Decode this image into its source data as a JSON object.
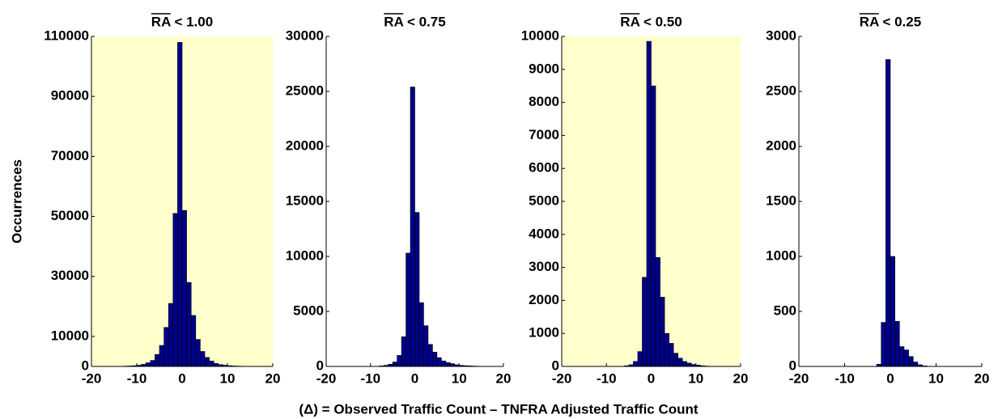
{
  "xlabel": "(Δ)  = Observed Traffic Count – TNFRA Adjusted Traffic Count",
  "chart_data": [
    {
      "type": "histogram",
      "title": "RA < 1.00",
      "ylabel": "Occurrences",
      "background": "#ffffcc",
      "color": "#000088",
      "bins": [
        -20,
        -19,
        -18,
        -17,
        -16,
        -15,
        -14,
        -13,
        -12,
        -11,
        -10,
        -9,
        -8,
        -7,
        -6,
        -5,
        -4,
        -3,
        -2,
        -1,
        0,
        1,
        2,
        3,
        4,
        5,
        6,
        7,
        8,
        9,
        10,
        11,
        12,
        13,
        14,
        15,
        16,
        17,
        18,
        19,
        20
      ],
      "values": [
        0,
        0,
        0,
        0,
        0,
        20,
        50,
        100,
        150,
        250,
        400,
        700,
        1200,
        2000,
        4000,
        7000,
        13000,
        21000,
        51000,
        108000,
        52000,
        28000,
        17000,
        9000,
        5000,
        3000,
        1800,
        1000,
        600,
        400,
        250,
        150,
        100,
        60,
        40,
        20,
        10,
        5,
        0,
        0
      ],
      "xlim": [
        -20,
        20
      ],
      "xticks": [
        -20,
        -10,
        0,
        10,
        20
      ],
      "ylim": [
        0,
        110000
      ],
      "yticks": [
        0,
        10000,
        30000,
        50000,
        70000,
        90000,
        110000
      ]
    },
    {
      "type": "histogram",
      "title": "RA < 0.75",
      "background": "#ffffff",
      "color": "#000088",
      "bins": [
        -20,
        -19,
        -18,
        -17,
        -16,
        -15,
        -14,
        -13,
        -12,
        -11,
        -10,
        -9,
        -8,
        -7,
        -6,
        -5,
        -4,
        -3,
        -2,
        -1,
        0,
        1,
        2,
        3,
        4,
        5,
        6,
        7,
        8,
        9,
        10,
        11,
        12,
        13,
        14,
        15,
        16,
        17,
        18,
        19,
        20
      ],
      "values": [
        0,
        0,
        0,
        0,
        0,
        0,
        0,
        0,
        0,
        0,
        0,
        0,
        50,
        100,
        200,
        400,
        1000,
        2700,
        10300,
        25400,
        14000,
        5800,
        3700,
        2000,
        1300,
        800,
        500,
        350,
        250,
        150,
        100,
        70,
        50,
        30,
        20,
        10,
        5,
        0,
        0,
        0
      ],
      "xlim": [
        -20,
        20
      ],
      "xticks": [
        -20,
        -10,
        0,
        10,
        20
      ],
      "ylim": [
        0,
        30000
      ],
      "yticks": [
        0,
        5000,
        10000,
        15000,
        20000,
        25000,
        30000
      ]
    },
    {
      "type": "histogram",
      "title": "RA < 0.50",
      "background": "#ffffcc",
      "color": "#000088",
      "bins": [
        -20,
        -19,
        -18,
        -17,
        -16,
        -15,
        -14,
        -13,
        -12,
        -11,
        -10,
        -9,
        -8,
        -7,
        -6,
        -5,
        -4,
        -3,
        -2,
        -1,
        0,
        1,
        2,
        3,
        4,
        5,
        6,
        7,
        8,
        9,
        10,
        11,
        12,
        13,
        14,
        15,
        16,
        17,
        18,
        19,
        20
      ],
      "values": [
        0,
        0,
        0,
        0,
        0,
        0,
        0,
        0,
        0,
        0,
        0,
        0,
        0,
        0,
        20,
        50,
        150,
        450,
        2700,
        9850,
        8500,
        3300,
        2100,
        1000,
        700,
        400,
        250,
        150,
        100,
        60,
        40,
        20,
        10,
        5,
        0,
        0,
        0,
        0,
        0,
        0
      ],
      "xlim": [
        -20,
        20
      ],
      "xticks": [
        -20,
        -10,
        0,
        10,
        20
      ],
      "ylim": [
        0,
        10000
      ],
      "yticks": [
        0,
        1000,
        2000,
        3000,
        4000,
        5000,
        6000,
        7000,
        8000,
        9000,
        10000
      ]
    },
    {
      "type": "histogram",
      "title": "RA < 0.25",
      "background": "#ffffff",
      "color": "#000088",
      "bins": [
        -20,
        -19,
        -18,
        -17,
        -16,
        -15,
        -14,
        -13,
        -12,
        -11,
        -10,
        -9,
        -8,
        -7,
        -6,
        -5,
        -4,
        -3,
        -2,
        -1,
        0,
        1,
        2,
        3,
        4,
        5,
        6,
        7,
        8,
        9,
        10,
        11,
        12,
        13,
        14,
        15,
        16,
        17,
        18,
        19,
        20
      ],
      "values": [
        0,
        0,
        0,
        0,
        0,
        0,
        0,
        0,
        0,
        0,
        0,
        0,
        0,
        0,
        0,
        0,
        0,
        20,
        400,
        2790,
        1000,
        410,
        180,
        150,
        90,
        40,
        15,
        5,
        0,
        0,
        0,
        0,
        0,
        0,
        0,
        0,
        0,
        0,
        0,
        0
      ],
      "xlim": [
        -20,
        20
      ],
      "xticks": [
        -20,
        -10,
        0,
        10,
        20
      ],
      "ylim": [
        0,
        3000
      ],
      "yticks": [
        0,
        500,
        1000,
        1500,
        2000,
        2500,
        3000
      ]
    }
  ]
}
